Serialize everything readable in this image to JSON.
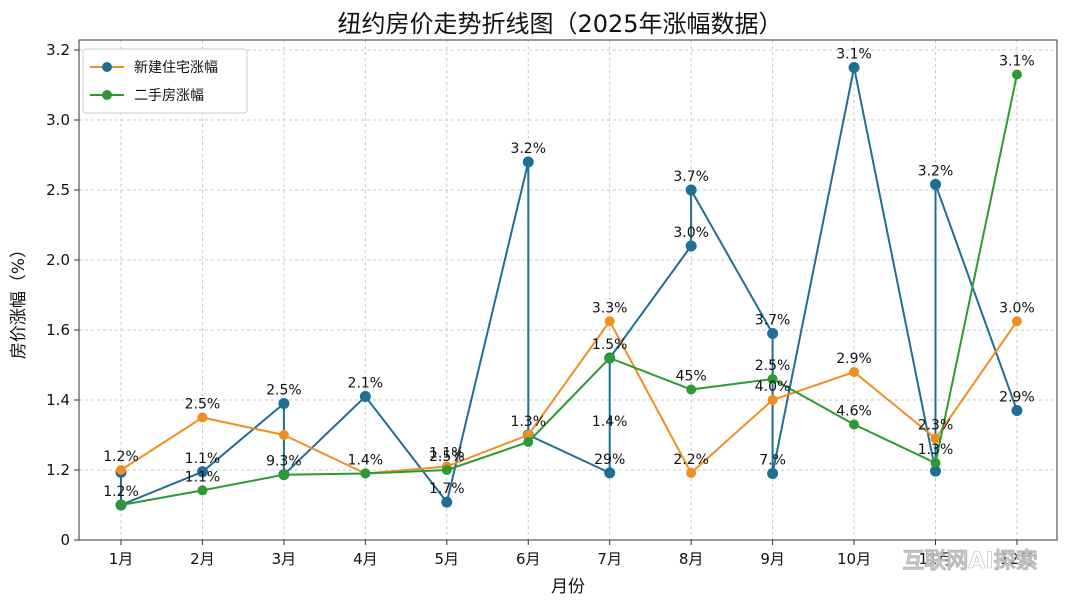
{
  "chart_data": {
    "type": "line",
    "title": "纽约房价走势折线图（2025年涨幅数据）",
    "xlabel": "月份",
    "ylabel": "房价涨幅（%）",
    "categories": [
      "1月",
      "2月",
      "3月",
      "4月",
      "5月",
      "6月",
      "7月",
      "8月",
      "9月",
      "10月",
      "11月",
      "12月"
    ],
    "y_ticks": [
      "0",
      "1.2",
      "1.4",
      "1.6",
      "2.0",
      "2.5",
      "3.0",
      "3.2"
    ],
    "grid": true,
    "legend_position": "top-left",
    "legend_marker_color_1": "#1f6e94",
    "series": [
      {
        "name": "新建住宅涨幅",
        "color": "#ef8f23",
        "points": [
          {
            "x": 0,
            "y": 1.2
          },
          {
            "x": 1,
            "y": 1.35
          },
          {
            "x": 2,
            "y": 1.3
          },
          {
            "x": 3,
            "y": 1.14
          },
          {
            "x": 4,
            "y": 1.21
          },
          {
            "x": 5,
            "y": 1.3
          },
          {
            "x": 6,
            "y": 1.65
          },
          {
            "x": 7,
            "y": 1.15
          },
          {
            "x": 8,
            "y": 1.4
          },
          {
            "x": 9,
            "y": 1.48
          },
          {
            "x": 10,
            "y": 1.29
          },
          {
            "x": 11,
            "y": 1.65
          }
        ]
      },
      {
        "name": "二手房涨幅",
        "color": "#2c9b34",
        "points": [
          {
            "x": 0,
            "y": 0.6
          },
          {
            "x": 1,
            "y": 0.85
          },
          {
            "x": 2,
            "y": 1.12
          },
          {
            "x": 3,
            "y": 1.14
          },
          {
            "x": 4,
            "y": 1.2
          },
          {
            "x": 5,
            "y": 1.28
          },
          {
            "x": 6,
            "y": 1.52
          },
          {
            "x": 7,
            "y": 1.43
          },
          {
            "x": 8,
            "y": 1.46
          },
          {
            "x": 9,
            "y": 1.33
          },
          {
            "x": 10,
            "y": 1.22
          },
          {
            "x": 11,
            "y": 3.13
          }
        ]
      },
      {
        "color": "#1f6e94",
        "points": [
          {
            "x": 0,
            "y": 1.16
          },
          {
            "x": 0,
            "y": 0.6
          },
          {
            "x": 1,
            "y": 1.17
          },
          {
            "x": 2,
            "y": 1.39
          },
          {
            "x": 2,
            "y": 1.12
          },
          {
            "x": 3,
            "y": 1.41
          },
          {
            "x": 4,
            "y": 0.65
          },
          {
            "x": 5,
            "y": 2.7
          },
          {
            "x": 5,
            "y": 1.3
          },
          {
            "x": 6,
            "y": 1.15
          },
          {
            "x": 6,
            "y": 1.52
          },
          {
            "x": 7,
            "y": 2.1
          },
          {
            "x": 7,
            "y": 2.5
          },
          {
            "x": 8,
            "y": 1.59
          },
          {
            "x": 8,
            "y": 1.14
          },
          {
            "x": 9,
            "y": 3.15
          },
          {
            "x": 10,
            "y": 1.18
          },
          {
            "x": 10,
            "y": 2.54
          },
          {
            "x": 11,
            "y": 1.37
          }
        ]
      }
    ],
    "annotations": [
      {
        "text": "1.2%",
        "x": 0,
        "y": 1.2
      },
      {
        "text": "1.2%",
        "x": 0,
        "y": 0.6
      },
      {
        "text": "2.5%",
        "x": 1,
        "y": 1.35
      },
      {
        "text": "1.1%",
        "x": 1,
        "y": 1.17
      },
      {
        "text": "1.1%",
        "x": 1,
        "y": 0.85
      },
      {
        "text": "2.5%",
        "x": 2,
        "y": 1.39
      },
      {
        "text": "9.3%",
        "x": 2,
        "y": 1.12
      },
      {
        "text": "2.1%",
        "x": 3,
        "y": 1.41
      },
      {
        "text": "1.4%",
        "x": 3,
        "y": 1.14
      },
      {
        "text": "1.1%",
        "x": 4,
        "y": 1.21
      },
      {
        "text": "2.5%",
        "x": 4,
        "y": 1.2
      },
      {
        "text": "1.7%",
        "x": 4,
        "y": 0.65
      },
      {
        "text": "3.2%",
        "x": 5,
        "y": 2.7
      },
      {
        "text": "1.3%",
        "x": 5,
        "y": 1.3
      },
      {
        "text": "3.3%",
        "x": 6,
        "y": 1.65
      },
      {
        "text": "1.5%",
        "x": 6,
        "y": 1.52
      },
      {
        "text": "1.4%",
        "x": 6,
        "y": 1.3
      },
      {
        "text": "29%",
        "x": 6,
        "y": 1.15
      },
      {
        "text": "3.7%",
        "x": 7,
        "y": 2.5
      },
      {
        "text": "3.0%",
        "x": 7,
        "y": 2.1
      },
      {
        "text": "45%",
        "x": 7,
        "y": 1.43
      },
      {
        "text": "2.2%",
        "x": 7,
        "y": 1.15
      },
      {
        "text": "3.7%",
        "x": 8,
        "y": 1.59
      },
      {
        "text": "2.5%",
        "x": 8,
        "y": 1.46
      },
      {
        "text": "4.0%",
        "x": 8,
        "y": 1.4
      },
      {
        "text": "7.%",
        "x": 8,
        "y": 1.14
      },
      {
        "text": "3.1%",
        "x": 9,
        "y": 3.15
      },
      {
        "text": "2.9%",
        "x": 9,
        "y": 1.48
      },
      {
        "text": "4.6%",
        "x": 9,
        "y": 1.33
      },
      {
        "text": "3.2%",
        "x": 10,
        "y": 2.54
      },
      {
        "text": "2.3%",
        "x": 10,
        "y": 1.29
      },
      {
        "text": "1.3%",
        "x": 10,
        "y": 1.22
      },
      {
        "text": "3.1%",
        "x": 11,
        "y": 3.13
      },
      {
        "text": "3.0%",
        "x": 11,
        "y": 1.65
      },
      {
        "text": "2.9%",
        "x": 11,
        "y": 1.37
      }
    ]
  },
  "watermark": "互联网AI探索"
}
